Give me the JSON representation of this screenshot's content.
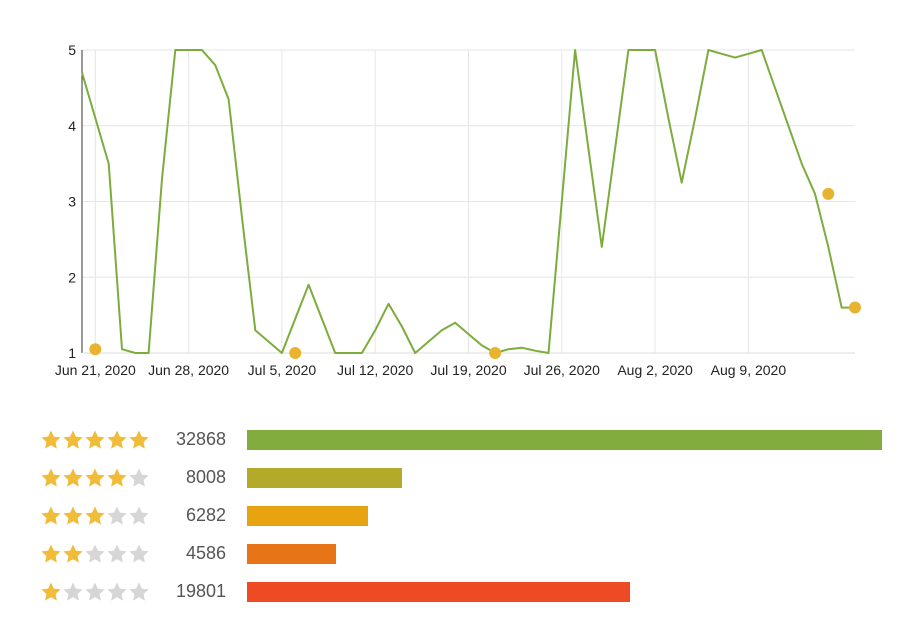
{
  "chart_data": {
    "type": "line",
    "title": "",
    "xlabel": "",
    "ylabel": "",
    "x_tick_labels": [
      "Jun 21, 2020",
      "Jun 28, 2020",
      "Jul 5, 2020",
      "Jul 12, 2020",
      "Jul 19, 2020",
      "Jul 26, 2020",
      "Aug 2, 2020",
      "Aug 9, 2020"
    ],
    "x_tick_dates": [
      "2020-06-21",
      "2020-06-28",
      "2020-07-05",
      "2020-07-12",
      "2020-07-19",
      "2020-07-26",
      "2020-08-02",
      "2020-08-09"
    ],
    "y_ticks": [
      1,
      2,
      3,
      4,
      5
    ],
    "ylim": [
      1,
      5
    ],
    "xlim": [
      "2020-06-20",
      "2020-08-17"
    ],
    "grid": true,
    "series": [
      {
        "color": "#7cac3c",
        "x": [
          "2020-06-20",
          "2020-06-22",
          "2020-06-23",
          "2020-06-24",
          "2020-06-25",
          "2020-06-26",
          "2020-06-27",
          "2020-06-28",
          "2020-06-29",
          "2020-06-30",
          "2020-07-01",
          "2020-07-02",
          "2020-07-03",
          "2020-07-04",
          "2020-07-05",
          "2020-07-06",
          "2020-07-07",
          "2020-07-08",
          "2020-07-09",
          "2020-07-10",
          "2020-07-11",
          "2020-07-12",
          "2020-07-13",
          "2020-07-14",
          "2020-07-15",
          "2020-07-16",
          "2020-07-17",
          "2020-07-18",
          "2020-07-19",
          "2020-07-20",
          "2020-07-21",
          "2020-07-22",
          "2020-07-23",
          "2020-07-24",
          "2020-07-25",
          "2020-07-26",
          "2020-07-27",
          "2020-07-28",
          "2020-07-29",
          "2020-07-30",
          "2020-07-31",
          "2020-08-01",
          "2020-08-02",
          "2020-08-03",
          "2020-08-04",
          "2020-08-05",
          "2020-08-06",
          "2020-08-07",
          "2020-08-08",
          "2020-08-09",
          "2020-08-10",
          "2020-08-11",
          "2020-08-12",
          "2020-08-13",
          "2020-08-14",
          "2020-08-15",
          "2020-08-16",
          "2020-08-17"
        ],
        "y": [
          4.7,
          3.5,
          1.05,
          1,
          1,
          3.3,
          5,
          5,
          5,
          4.8,
          4.35,
          2.8,
          1.3,
          1.15,
          1,
          1.45,
          1.9,
          1.45,
          1,
          1,
          1,
          1.3,
          1.65,
          1.35,
          1,
          1.15,
          1.3,
          1.4,
          1.25,
          1.1,
          1,
          1.05,
          1.07,
          1.03,
          1,
          3.0,
          5,
          3.7,
          2.4,
          3.7,
          5,
          5,
          5,
          4.1,
          3.25,
          4.1,
          5,
          4.95,
          4.9,
          4.95,
          5,
          4.5,
          4.0,
          3.5,
          3.1,
          2.4,
          1.6,
          1.6
        ]
      }
    ],
    "markers": [
      {
        "x": "2020-06-21",
        "y": 1.05
      },
      {
        "x": "2020-07-06",
        "y": 1.0
      },
      {
        "x": "2020-07-21",
        "y": 1.0
      },
      {
        "x": "2020-08-15",
        "y": 3.1
      },
      {
        "x": "2020-08-17",
        "y": 1.6
      }
    ],
    "line_color": "#7cac3c",
    "marker_color": "#e8b430"
  },
  "ratings": {
    "max_count": 32868,
    "rows": [
      {
        "stars": 5,
        "count": "32868",
        "value": 32868,
        "color": "#82ac3e"
      },
      {
        "stars": 4,
        "count": "8008",
        "value": 8008,
        "color": "#b4aa2a"
      },
      {
        "stars": 3,
        "count": "6282",
        "value": 6282,
        "color": "#e8a410"
      },
      {
        "stars": 2,
        "count": "4586",
        "value": 4586,
        "color": "#e87418"
      },
      {
        "stars": 1,
        "count": "19801",
        "value": 19801,
        "color": "#ee4a24"
      }
    ],
    "star_filled_color": "#f1bc3a",
    "star_empty_color": "#d6d6d6"
  }
}
